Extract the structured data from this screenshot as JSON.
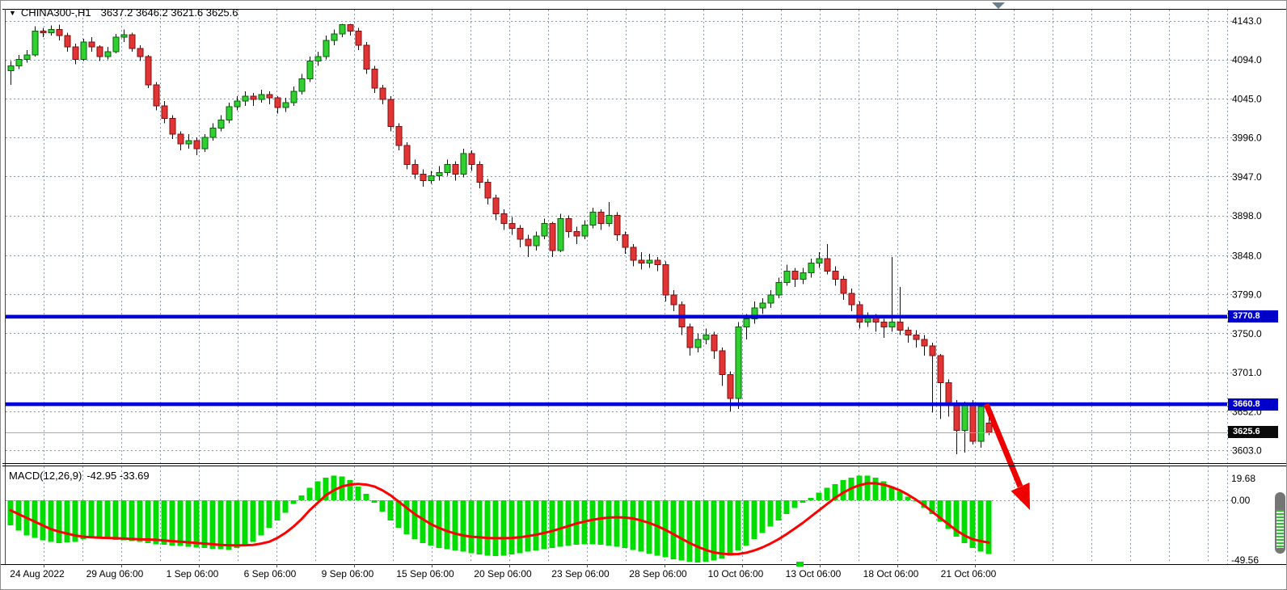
{
  "header": {
    "dropdown_icon": "▼",
    "symbol": "CHINA300-,H1",
    "ohlc_text": "3637.2 3646.2 3621.6 3625.6"
  },
  "macd_panel": {
    "label": "MACD(12,26,9)",
    "values_text": "-42.95 -33.69",
    "scale": {
      "max": "19.68",
      "zero": "0.00",
      "min": "-49.56"
    }
  },
  "price_axis": {
    "labels": [
      "4143.0",
      "4094.0",
      "4045.0",
      "3996.0",
      "3947.0",
      "3898.0",
      "3848.0",
      "3799.0",
      "3750.0",
      "3701.0",
      "3652.0",
      "3603.0"
    ],
    "upper_level_badge": "3770.8",
    "lower_level_badge": "3660.8",
    "last_price_badge": "3625.6"
  },
  "time_axis": {
    "labels": [
      {
        "text": "24 Aug 2022",
        "x": 53
      },
      {
        "text": "29 Aug 06:00",
        "x": 149
      },
      {
        "text": "1 Sep 06:00",
        "x": 245
      },
      {
        "text": "6 Sep 06:00",
        "x": 341
      },
      {
        "text": "9 Sep 06:00",
        "x": 437
      },
      {
        "text": "15 Sep 06:00",
        "x": 533
      },
      {
        "text": "20 Sep 06:00",
        "x": 629
      },
      {
        "text": "23 Sep 06:00",
        "x": 725
      },
      {
        "text": "28 Sep 06:00",
        "x": 821
      },
      {
        "text": "10 Oct 06:00",
        "x": 917
      },
      {
        "text": "13 Oct 06:00",
        "x": 1013
      },
      {
        "text": "18 Oct 06:00",
        "x": 1109
      },
      {
        "text": "21 Oct 06:00",
        "x": 1205
      }
    ],
    "marker_x": 984
  },
  "colors": {
    "bull": "#2fd12f",
    "bull_border": "#0b5c0b",
    "bear": "#e23434",
    "bear_border": "#7c1111",
    "wick": "#111111",
    "macd_hist": "#00dd00",
    "macd_signal": "#ff0000",
    "level_line": "#0000d8",
    "grid": "#8a99a8",
    "arrow": "#ee0000",
    "last_price_line": "#a8a8a8"
  },
  "chart_data": [
    {
      "type": "candlestick",
      "title": "CHINA300- H1",
      "ylim": [
        3590,
        4150
      ],
      "price_gridlines": [
        4143,
        4094,
        4045,
        3996,
        3947,
        3898,
        3848,
        3799,
        3750,
        3701,
        3652,
        3603
      ],
      "levels": [
        3770.8,
        3660.8
      ],
      "last_price": 3625.6,
      "x_start": 12,
      "x_step": 10,
      "grid_x_start": 53,
      "grid_x_step": 48,
      "grid_x_count": 31,
      "annotations": [
        {
          "type": "arrow",
          "direction": "down-right",
          "color": "#ee0000",
          "from_price": 3660.8
        }
      ],
      "candles": [
        [
          4080,
          4092,
          4062,
          4086
        ],
        [
          4086,
          4100,
          4082,
          4094
        ],
        [
          4094,
          4106,
          4090,
          4100
        ],
        [
          4100,
          4136,
          4098,
          4130
        ],
        [
          4130,
          4134,
          4122,
          4128
        ],
        [
          4128,
          4137,
          4124,
          4132
        ],
        [
          4132,
          4138,
          4118,
          4124
        ],
        [
          4124,
          4128,
          4104,
          4110
        ],
        [
          4110,
          4114,
          4088,
          4094
        ],
        [
          4094,
          4120,
          4092,
          4116
        ],
        [
          4116,
          4122,
          4104,
          4110
        ],
        [
          4110,
          4112,
          4092,
          4098
        ],
        [
          4098,
          4110,
          4094,
          4104
        ],
        [
          4104,
          4126,
          4102,
          4122
        ],
        [
          4122,
          4132,
          4116,
          4125
        ],
        [
          4125,
          4128,
          4104,
          4108
        ],
        [
          4108,
          4112,
          4092,
          4098
        ],
        [
          4098,
          4100,
          4058,
          4062
        ],
        [
          4062,
          4066,
          4030,
          4036
        ],
        [
          4036,
          4042,
          4014,
          4020
        ],
        [
          4020,
          4024,
          3994,
          4000
        ],
        [
          4000,
          4004,
          3980,
          3988
        ],
        [
          3988,
          4000,
          3982,
          3992
        ],
        [
          3992,
          3996,
          3974,
          3982
        ],
        [
          3982,
          4000,
          3978,
          3996
        ],
        [
          3996,
          4014,
          3992,
          4008
        ],
        [
          4008,
          4024,
          4004,
          4018
        ],
        [
          4018,
          4040,
          4014,
          4035
        ],
        [
          4035,
          4048,
          4030,
          4042
        ],
        [
          4042,
          4054,
          4036,
          4048
        ],
        [
          4048,
          4052,
          4036,
          4044
        ],
        [
          4044,
          4056,
          4040,
          4050
        ],
        [
          4050,
          4054,
          4038,
          4046
        ],
        [
          4046,
          4048,
          4026,
          4034
        ],
        [
          4034,
          4046,
          4028,
          4040
        ],
        [
          4040,
          4060,
          4036,
          4054
        ],
        [
          4054,
          4076,
          4050,
          4070
        ],
        [
          4070,
          4098,
          4066,
          4092
        ],
        [
          4092,
          4104,
          4086,
          4098
        ],
        [
          4098,
          4124,
          4094,
          4118
        ],
        [
          4118,
          4132,
          4112,
          4126
        ],
        [
          4126,
          4139,
          4122,
          4138
        ],
        [
          4138,
          4139,
          4124,
          4130
        ],
        [
          4130,
          4134,
          4106,
          4112
        ],
        [
          4112,
          4116,
          4076,
          4082
        ],
        [
          4082,
          4086,
          4052,
          4058
        ],
        [
          4058,
          4062,
          4038,
          4044
        ],
        [
          4044,
          4048,
          4004,
          4010
        ],
        [
          4010,
          4014,
          3980,
          3986
        ],
        [
          3986,
          3990,
          3956,
          3962
        ],
        [
          3962,
          3968,
          3944,
          3950
        ],
        [
          3950,
          3956,
          3934,
          3942
        ],
        [
          3942,
          3954,
          3938,
          3948
        ],
        [
          3948,
          3960,
          3942,
          3952
        ],
        [
          3952,
          3968,
          3948,
          3962
        ],
        [
          3962,
          3966,
          3942,
          3950
        ],
        [
          3950,
          3982,
          3946,
          3976
        ],
        [
          3976,
          3980,
          3954,
          3962
        ],
        [
          3962,
          3966,
          3932,
          3940
        ],
        [
          3940,
          3944,
          3912,
          3920
        ],
        [
          3920,
          3924,
          3892,
          3900
        ],
        [
          3900,
          3906,
          3880,
          3888
        ],
        [
          3888,
          3896,
          3874,
          3882
        ],
        [
          3882,
          3886,
          3858,
          3868
        ],
        [
          3868,
          3874,
          3846,
          3860
        ],
        [
          3860,
          3878,
          3854,
          3872
        ],
        [
          3872,
          3894,
          3868,
          3888
        ],
        [
          3888,
          3890,
          3846,
          3854
        ],
        [
          3854,
          3900,
          3852,
          3894
        ],
        [
          3894,
          3898,
          3870,
          3878
        ],
        [
          3878,
          3884,
          3862,
          3872
        ],
        [
          3872,
          3892,
          3868,
          3886
        ],
        [
          3886,
          3908,
          3882,
          3902
        ],
        [
          3902,
          3906,
          3880,
          3888
        ],
        [
          3888,
          3915,
          3884,
          3898
        ],
        [
          3898,
          3902,
          3866,
          3874
        ],
        [
          3874,
          3878,
          3850,
          3858
        ],
        [
          3858,
          3862,
          3834,
          3842
        ],
        [
          3842,
          3852,
          3830,
          3838
        ],
        [
          3838,
          3850,
          3832,
          3842
        ],
        [
          3842,
          3846,
          3828,
          3836
        ],
        [
          3836,
          3840,
          3790,
          3798
        ],
        [
          3798,
          3804,
          3778,
          3786
        ],
        [
          3786,
          3790,
          3748,
          3758
        ],
        [
          3758,
          3762,
          3722,
          3732
        ],
        [
          3732,
          3750,
          3726,
          3742
        ],
        [
          3742,
          3756,
          3736,
          3748
        ],
        [
          3748,
          3752,
          3718,
          3728
        ],
        [
          3728,
          3732,
          3684,
          3698
        ],
        [
          3698,
          3702,
          3652,
          3668
        ],
        [
          3668,
          3764,
          3655,
          3758
        ],
        [
          3758,
          3774,
          3742,
          3768
        ],
        [
          3768,
          3790,
          3762,
          3782
        ],
        [
          3782,
          3794,
          3774,
          3788
        ],
        [
          3788,
          3804,
          3782,
          3798
        ],
        [
          3798,
          3820,
          3794,
          3814
        ],
        [
          3814,
          3836,
          3810,
          3828
        ],
        [
          3828,
          3832,
          3808,
          3818
        ],
        [
          3818,
          3832,
          3812,
          3826
        ],
        [
          3826,
          3844,
          3820,
          3838
        ],
        [
          3838,
          3852,
          3832,
          3844
        ],
        [
          3844,
          3862,
          3824,
          3828
        ],
        [
          3828,
          3834,
          3810,
          3818
        ],
        [
          3818,
          3822,
          3792,
          3800
        ],
        [
          3800,
          3806,
          3778,
          3786
        ],
        [
          3786,
          3790,
          3756,
          3764
        ],
        [
          3764,
          3776,
          3758,
          3770
        ],
        [
          3770,
          3774,
          3752,
          3764
        ],
        [
          3764,
          3768,
          3744,
          3758
        ],
        [
          3758,
          3846,
          3752,
          3764
        ],
        [
          3764,
          3808,
          3748,
          3754
        ],
        [
          3754,
          3758,
          3738,
          3748
        ],
        [
          3748,
          3754,
          3732,
          3742
        ],
        [
          3742,
          3748,
          3722,
          3734
        ],
        [
          3734,
          3738,
          3650,
          3722
        ],
        [
          3722,
          3724,
          3642,
          3688
        ],
        [
          3688,
          3692,
          3645,
          3662
        ],
        [
          3662,
          3666,
          3598,
          3628
        ],
        [
          3628,
          3664,
          3600,
          3660
        ],
        [
          3660,
          3666,
          3610,
          3614
        ],
        [
          3614,
          3662,
          3606,
          3658
        ],
        [
          3637.2,
          3646.2,
          3621.6,
          3625.6
        ]
      ]
    },
    {
      "type": "bar",
      "title": "MACD(12,26,9)",
      "ylim": [
        -49.56,
        19.68
      ],
      "last_values": {
        "macd": -42.95,
        "signal": -33.69
      },
      "histogram": [
        -20,
        -24,
        -28,
        -30,
        -32,
        -33,
        -34,
        -33.5,
        -33,
        -31,
        -30,
        -30.5,
        -31,
        -31.5,
        -32,
        -32.5,
        -33,
        -34,
        -35,
        -35.5,
        -36,
        -36.5,
        -37,
        -37.5,
        -38,
        -38.5,
        -39,
        -39.5,
        -38,
        -36,
        -33,
        -28,
        -22,
        -16,
        -10,
        -3,
        4,
        10,
        15,
        18,
        19.5,
        19,
        16,
        11,
        5,
        -2,
        -9,
        -16,
        -22,
        -27,
        -31,
        -34,
        -36,
        -38,
        -39,
        -40,
        -41,
        -42,
        -43,
        -44,
        -44.5,
        -44,
        -43,
        -42,
        -41,
        -40,
        -39,
        -38,
        -37,
        -36,
        -35.5,
        -35,
        -35,
        -35.5,
        -36,
        -37,
        -38,
        -39.5,
        -41,
        -42.5,
        -44,
        -45.5,
        -47,
        -48,
        -49,
        -49.5,
        -49,
        -48,
        -46.5,
        -44,
        -40,
        -36,
        -31,
        -26,
        -21,
        -16,
        -11,
        -6,
        -2,
        2,
        6,
        10,
        13,
        16,
        18,
        19.5,
        19.68,
        18,
        15,
        11,
        7,
        3,
        -1,
        -6,
        -11,
        -17,
        -23,
        -29,
        -34,
        -38,
        -41,
        -42.95
      ],
      "signal": [
        -8,
        -11,
        -14,
        -17,
        -20,
        -23,
        -25,
        -26.5,
        -28,
        -29,
        -29.5,
        -29.8,
        -30,
        -30.2,
        -30.5,
        -30.8,
        -31,
        -31.2,
        -31.5,
        -32,
        -32.5,
        -33,
        -33.5,
        -34,
        -34.5,
        -35,
        -35.5,
        -35.8,
        -36,
        -35.8,
        -35.5,
        -34.5,
        -33,
        -30,
        -26,
        -21,
        -15,
        -8,
        -2,
        4,
        8,
        11,
        12.5,
        13,
        12.5,
        11,
        8,
        4,
        -1,
        -6,
        -11,
        -15,
        -19,
        -22,
        -24.5,
        -26.5,
        -28,
        -29,
        -29.5,
        -30,
        -30.2,
        -30.2,
        -30,
        -29.5,
        -28.5,
        -27.5,
        -26,
        -24.5,
        -22.5,
        -20.5,
        -18.5,
        -17,
        -15.5,
        -14.5,
        -13.8,
        -13.5,
        -13.8,
        -14.5,
        -16,
        -18,
        -20.5,
        -23.5,
        -27,
        -30.5,
        -34,
        -37,
        -39.5,
        -41.5,
        -42.5,
        -43,
        -42.8,
        -41.8,
        -40,
        -37.5,
        -34.5,
        -31,
        -27,
        -22.5,
        -18,
        -13,
        -8,
        -3,
        2,
        6,
        9.5,
        12,
        13.5,
        13.5,
        12.5,
        10.5,
        8,
        4.5,
        0.5,
        -4,
        -9,
        -14,
        -19,
        -24,
        -28,
        -31,
        -32.5,
        -33.69
      ]
    }
  ]
}
